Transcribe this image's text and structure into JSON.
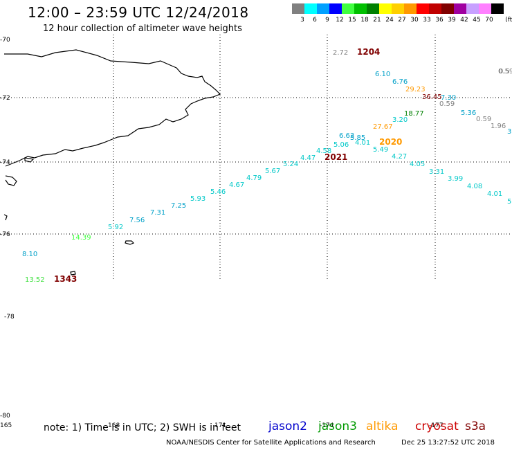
{
  "header": {
    "title": "12:00 – 23:59 UTC 12/24/2018",
    "subtitle": "12 hour collection of altimeter wave heights"
  },
  "legend": {
    "unit": "(ft)",
    "bins": [
      {
        "label": "3",
        "color": "#808080"
      },
      {
        "label": "6",
        "color": "#00ffff"
      },
      {
        "label": "9",
        "color": "#00a0ff"
      },
      {
        "label": "12",
        "color": "#0000ff"
      },
      {
        "label": "15",
        "color": "#40ff40"
      },
      {
        "label": "18",
        "color": "#00c000"
      },
      {
        "label": "21",
        "color": "#008000"
      },
      {
        "label": "24",
        "color": "#ffff00"
      },
      {
        "label": "27",
        "color": "#ffd000"
      },
      {
        "label": "30",
        "color": "#ff9900"
      },
      {
        "label": "33",
        "color": "#ff0000"
      },
      {
        "label": "36",
        "color": "#c00000"
      },
      {
        "label": "39",
        "color": "#800000"
      },
      {
        "label": "42",
        "color": "#a000a0"
      },
      {
        "label": "45",
        "color": "#c8a0ff"
      },
      {
        "label": "70",
        "color": "#ff80ff"
      },
      {
        "label": "",
        "color": "#000000"
      }
    ]
  },
  "map": {
    "lat_labels": [
      "-70",
      "-72",
      "-74",
      "-76",
      "-78",
      "-80"
    ],
    "lon_labels": [
      "165",
      "168",
      "171",
      "-174",
      "-177"
    ],
    "observations": [
      {
        "value": "2.72",
        "color": "#808080"
      },
      {
        "value": "1204",
        "color": "#800000"
      },
      {
        "value": "6.10",
        "color": "#00a0c8"
      },
      {
        "value": "6.76",
        "color": "#00a0c8"
      },
      {
        "value": "29.23",
        "color": "#ff9900"
      },
      {
        "value": "36.45",
        "color": "#800000"
      },
      {
        "value": "7.30",
        "color": "#00a0c8"
      },
      {
        "value": "0.59",
        "color": "#808080"
      },
      {
        "value": "0.59",
        "color": "#808080"
      },
      {
        "value": "0.5",
        "color": "#808080"
      },
      {
        "value": "18.77",
        "color": "#008000"
      },
      {
        "value": "3.20",
        "color": "#00c8c8"
      },
      {
        "value": "5.36",
        "color": "#00a0c8"
      },
      {
        "value": "0.59",
        "color": "#808080"
      },
      {
        "value": "1.96",
        "color": "#808080"
      },
      {
        "value": "3",
        "color": "#00a0c8"
      },
      {
        "value": "27.67",
        "color": "#ff9900"
      },
      {
        "value": "6.63",
        "color": "#00a0c8"
      },
      {
        "value": "5.85",
        "color": "#00a0c8"
      },
      {
        "value": "5.06",
        "color": "#00c8c8"
      },
      {
        "value": "4.01",
        "color": "#00c8c8"
      },
      {
        "value": "2020",
        "color": "#ff9900"
      },
      {
        "value": "5.49",
        "color": "#00c8c8"
      },
      {
        "value": "4.58",
        "color": "#00c8c8"
      },
      {
        "value": "4.27",
        "color": "#00c8c8"
      },
      {
        "value": "2021",
        "color": "#800000"
      },
      {
        "value": "4.47",
        "color": "#00c8c8"
      },
      {
        "value": "5.24",
        "color": "#00c8c8"
      },
      {
        "value": "4.05",
        "color": "#00c8c8"
      },
      {
        "value": "3.31",
        "color": "#00c8c8"
      },
      {
        "value": "5.67",
        "color": "#00c8c8"
      },
      {
        "value": "4.79",
        "color": "#00c8c8"
      },
      {
        "value": "3.99",
        "color": "#00c8c8"
      },
      {
        "value": "4.67",
        "color": "#00c8c8"
      },
      {
        "value": "4.08",
        "color": "#00c8c8"
      },
      {
        "value": "5.46",
        "color": "#00c8c8"
      },
      {
        "value": "4.01",
        "color": "#00c8c8"
      },
      {
        "value": "5",
        "color": "#00c8c8"
      },
      {
        "value": "5.93",
        "color": "#00c8c8"
      },
      {
        "value": "7.25",
        "color": "#00a0c8"
      },
      {
        "value": "7.31",
        "color": "#00a0c8"
      },
      {
        "value": "7.56",
        "color": "#00a0c8"
      },
      {
        "value": "5.92",
        "color": "#00c8c8"
      },
      {
        "value": "14.39",
        "color": "#40ff40"
      },
      {
        "value": "8.10",
        "color": "#00a0c8"
      },
      {
        "value": "13.52",
        "color": "#40e040"
      },
      {
        "value": "1343",
        "color": "#800000"
      }
    ]
  },
  "footer": {
    "note": "note:  1)  Time is in UTC;  2)  SWH is in feet",
    "satellites": [
      {
        "name": "jason2",
        "color": "#0000cc"
      },
      {
        "name": "jason3",
        "color": "#009900"
      },
      {
        "name": "altika",
        "color": "#ff9900"
      },
      {
        "name": "cryosat",
        "color": "#cc0000"
      },
      {
        "name": "s3a",
        "color": "#800000"
      }
    ],
    "credit": "NOAA/NESDIS Center for Satellite Applications and Research",
    "timestamp": "Dec 25 13:27:52 UTC 2018"
  }
}
